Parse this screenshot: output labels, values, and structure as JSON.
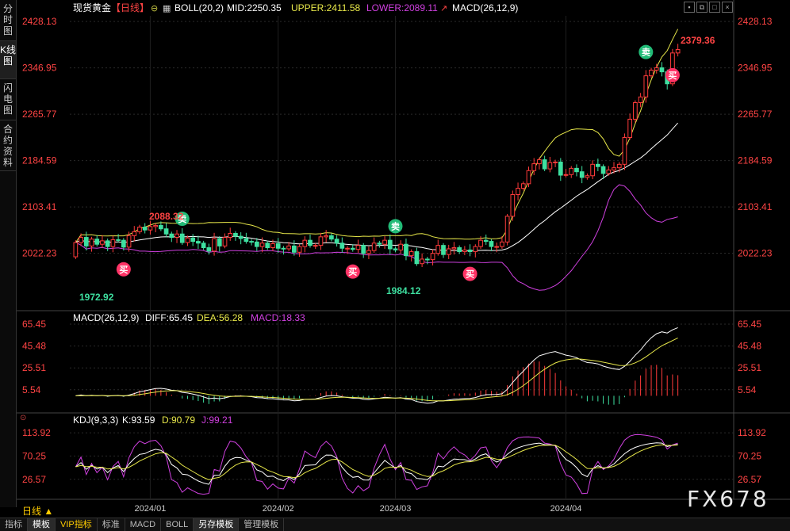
{
  "sidebar": {
    "tabs": [
      {
        "label": "分时图",
        "active": false
      },
      {
        "label": "K线图",
        "active": true
      },
      {
        "label": "闪电图",
        "active": false
      },
      {
        "label": "合约资料",
        "active": false
      }
    ]
  },
  "window_buttons": [
    "window-icon",
    "restore-icon",
    "maximize-icon",
    "close-icon"
  ],
  "header": {
    "symbol": "现货黄金",
    "period_tag": "【日线】",
    "boll": "BOLL(20,2)",
    "mid": "MID:2250.35",
    "upper": "UPPER:2411.58",
    "lower": "LOWER:2089.11",
    "macd_label": "MACD(26,12,9)"
  },
  "macd_header": {
    "name": "MACD(26,12,9)",
    "diff": "DIFF:65.45",
    "dea": "DEA:56.28",
    "macd": "MACD:18.33"
  },
  "kdj_header": {
    "name": "KDJ(9,3,3)",
    "k": "K:93.59",
    "d": "D:90.79",
    "j": "J:99.21"
  },
  "period_switch": "日线 ▲",
  "bottom_tabs": [
    {
      "label": "指标",
      "active": false
    },
    {
      "label": "模板",
      "active": true
    },
    {
      "label": "VIP指标",
      "active": false
    },
    {
      "label": "标准",
      "active": false
    },
    {
      "label": "MACD",
      "active": false
    },
    {
      "label": "BOLL",
      "active": false
    },
    {
      "label": "另存模板",
      "active": true
    },
    {
      "label": "管理模板",
      "active": false
    }
  ],
  "watermark": "FX678",
  "colors": {
    "up": "#ff3b3b",
    "down": "#3ee0a0",
    "mid": "#ffffff",
    "upper": "#e8e84a",
    "lower": "#d040e0",
    "dea": "#e8e84a",
    "grid": "#2a2a2a",
    "axis_red": "#ff4444"
  },
  "chart_data": {
    "type": "candlestick",
    "price_axis": {
      "ticks": [
        "2428.13",
        "2346.95",
        "2265.77",
        "2184.59",
        "2103.41",
        "2022.23"
      ],
      "min": 1955,
      "max": 2438
    },
    "x_labels": [
      "2024/01",
      "2024/02",
      "2024/03",
      "2024/04"
    ],
    "annotations": {
      "high": "2379.36",
      "low1": "1972.92",
      "low2": "1984.12",
      "local_high": "2088.32"
    },
    "signals": [
      {
        "type": "buy",
        "label": "买",
        "index": 9
      },
      {
        "type": "sell",
        "label": "卖",
        "index": 20
      },
      {
        "type": "buy",
        "label": "买",
        "index": 52
      },
      {
        "type": "sell",
        "label": "卖",
        "index": 60
      },
      {
        "type": "buy",
        "label": "买",
        "index": 74
      },
      {
        "type": "sell",
        "label": "卖",
        "index": 107
      },
      {
        "type": "buy",
        "label": "买",
        "index": 112
      }
    ],
    "closes": [
      2041,
      2050,
      2035,
      2047,
      2038,
      2044,
      2034,
      2046,
      2045,
      2033,
      2053,
      2060,
      2068,
      2063,
      2069,
      2071,
      2065,
      2056,
      2050,
      2056,
      2041,
      2049,
      2043,
      2040,
      2032,
      2026,
      2048,
      2035,
      2050,
      2057,
      2052,
      2048,
      2043,
      2042,
      2034,
      2040,
      2032,
      2039,
      2031,
      2030,
      2035,
      2024,
      2034,
      2045,
      2036,
      2036,
      2051,
      2053,
      2047,
      2040,
      2031,
      2031,
      2029,
      2036,
      2022,
      2027,
      2040,
      2038,
      2045,
      2030,
      2028,
      2038,
      2018,
      2025,
      2004,
      2012,
      2011,
      2022,
      2036,
      2020,
      2030,
      2032,
      2025,
      2028,
      2025,
      2034,
      2045,
      2043,
      2034,
      2034,
      2042,
      2087,
      2125,
      2136,
      2144,
      2167,
      2179,
      2186,
      2170,
      2181,
      2182,
      2159,
      2160,
      2171,
      2165,
      2155,
      2158,
      2178,
      2174,
      2162,
      2168,
      2172,
      2178,
      2225,
      2257,
      2286,
      2296,
      2333,
      2343,
      2347,
      2340,
      2319,
      2373,
      2379
    ],
    "macd_axis": [
      "65.45",
      "45.48",
      "25.51",
      "5.54"
    ],
    "kdj_axis": [
      "113.92",
      "70.25",
      "26.57"
    ]
  }
}
